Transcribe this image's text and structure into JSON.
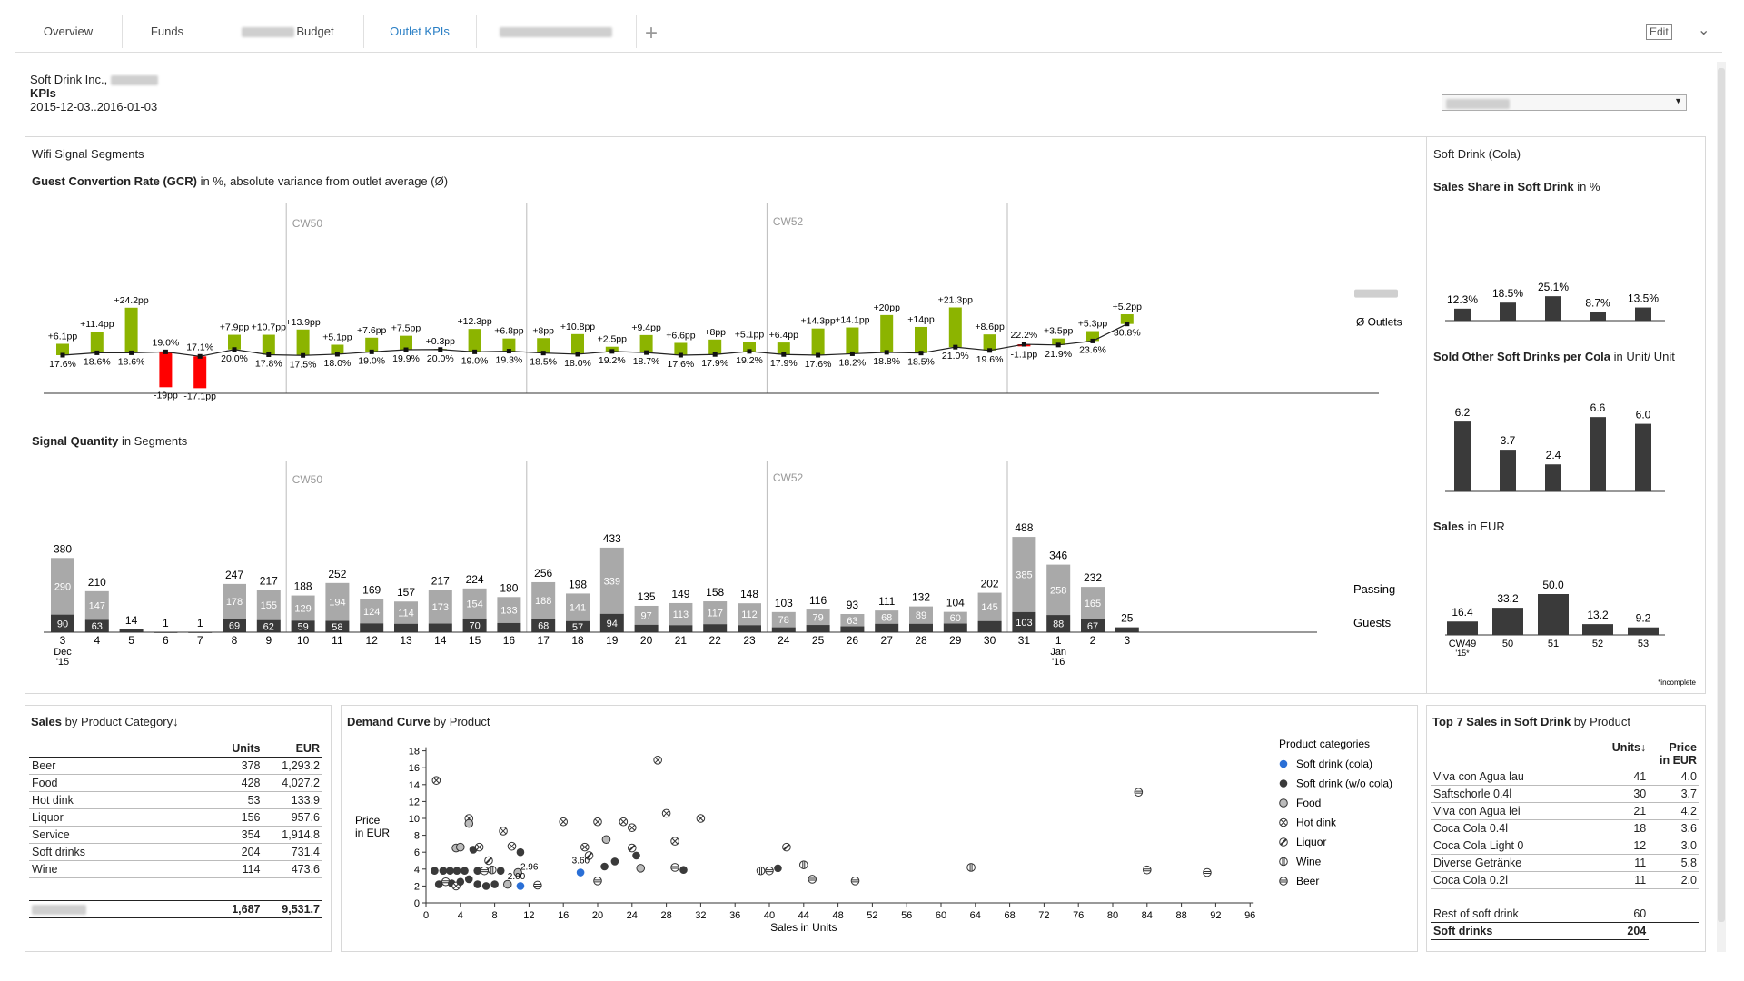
{
  "tabs": [
    {
      "label": "Overview",
      "active": false
    },
    {
      "label": "Funds",
      "active": false
    },
    {
      "label": "Budget",
      "active": false,
      "blurred_prefix": true
    },
    {
      "label": "Outlet KPIs",
      "active": true
    },
    {
      "label": "",
      "active": false,
      "blurred": true
    }
  ],
  "header": {
    "company": "Soft Drink Inc.,",
    "title": "KPIs",
    "date_range": "2015-12-03..2016-01-03",
    "edit_label": "Edit"
  },
  "wifi": {
    "section_title": "Wifi Signal Segments",
    "gcr_title_bold": "Guest Convertion Rate (GCR)",
    "gcr_title_rest": " in %, absolute variance from outlet average (Ø)",
    "week_labels": [
      "CW50",
      "CW52"
    ],
    "outlets_label": "Ø Outlets",
    "gcr": {
      "variance": [
        "+6.1pp",
        "+11.4pp",
        "+24.2pp",
        "-19pp",
        "-17.1pp",
        "+7.9pp",
        "+10.7pp",
        "+13.9pp",
        "+5.1pp",
        "+7.6pp",
        "+7.5pp",
        "+0.3pp",
        "+12.3pp",
        "+6.8pp",
        "+8pp",
        "+10.8pp",
        "+2.5pp",
        "+9.4pp",
        "+6.6pp",
        "+8pp",
        "+5.1pp",
        "+6.4pp",
        "+14.3pp",
        "+14.1pp",
        "+20pp",
        "+14pp",
        "+21.3pp",
        "+8.6pp",
        "-1.1pp",
        "+3.5pp",
        "+5.3pp",
        "+5.2pp"
      ],
      "variance_values": [
        6.1,
        11.4,
        24.2,
        -19,
        -17.1,
        7.9,
        10.7,
        13.9,
        5.1,
        7.6,
        7.5,
        0.3,
        12.3,
        6.8,
        8,
        10.8,
        2.5,
        9.4,
        6.6,
        8,
        5.1,
        6.4,
        14.3,
        14.1,
        20,
        14,
        21.3,
        8.6,
        -1.1,
        3.5,
        5.3,
        5.2
      ],
      "average": [
        "17.6%",
        "18.6%",
        "18.6%",
        "19.0%",
        "17.1%",
        "20.0%",
        "17.8%",
        "17.5%",
        "18.0%",
        "19.0%",
        "19.9%",
        "20.0%",
        "19.0%",
        "19.3%",
        "18.5%",
        "18.0%",
        "19.2%",
        "18.7%",
        "17.6%",
        "17.9%",
        "19.2%",
        "17.9%",
        "17.6%",
        "18.2%",
        "18.8%",
        "18.5%",
        "21.0%",
        "19.6%",
        "22.2%",
        "21.9%",
        "23.6%",
        "30.8%"
      ],
      "average_values": [
        17.6,
        18.6,
        18.6,
        19.0,
        17.1,
        20.0,
        17.8,
        17.5,
        18.0,
        19.0,
        19.9,
        20.0,
        19.0,
        19.3,
        18.5,
        18.0,
        19.2,
        18.7,
        17.6,
        17.9,
        19.2,
        17.9,
        17.6,
        18.2,
        18.8,
        18.5,
        21.0,
        19.6,
        22.2,
        21.9,
        23.6,
        30.8
      ]
    },
    "sq_title_bold": "Signal Quantity",
    "sq_title_rest": " in Segments",
    "sq": {
      "total": [
        "380",
        "210",
        "14",
        "1",
        "1",
        "247",
        "217",
        "188",
        "252",
        "169",
        "157",
        "217",
        "224",
        "180",
        "256",
        "198",
        "433",
        "135",
        "149",
        "158",
        "148",
        "103",
        "116",
        "93",
        "111",
        "132",
        "104",
        "202",
        "488",
        "346",
        "232",
        "25"
      ],
      "total_values": [
        380,
        210,
        14,
        1,
        1,
        247,
        217,
        188,
        252,
        169,
        157,
        217,
        224,
        180,
        256,
        198,
        433,
        135,
        149,
        158,
        148,
        103,
        116,
        93,
        111,
        132,
        104,
        202,
        488,
        346,
        232,
        25
      ],
      "passing": [
        "290",
        "147",
        "",
        "",
        "",
        "178",
        "155",
        "129",
        "194",
        "124",
        "114",
        "173",
        "154",
        "133",
        "188",
        "141",
        "339",
        "97",
        "113",
        "117",
        "112",
        "78",
        "79",
        "63",
        "68",
        "89",
        "60",
        "145",
        "385",
        "258",
        "165",
        ""
      ],
      "guests": [
        "90",
        "63",
        "",
        "",
        "",
        "69",
        "62",
        "59",
        "58",
        "",
        "",
        "",
        "70",
        "",
        "68",
        "57",
        "94",
        "",
        "",
        "",
        "",
        "",
        "",
        "",
        "",
        "",
        "",
        "",
        "103",
        "88",
        "67",
        ""
      ],
      "legend_passing": "Passing",
      "legend_guests": "Guests",
      "days": [
        "3",
        "4",
        "5",
        "6",
        "7",
        "8",
        "9",
        "10",
        "11",
        "12",
        "13",
        "14",
        "15",
        "16",
        "17",
        "18",
        "19",
        "20",
        "21",
        "22",
        "23",
        "24",
        "25",
        "26",
        "27",
        "28",
        "29",
        "30",
        "31",
        "1",
        "2",
        "3"
      ],
      "dec_label": "Dec",
      "dec_year": "'15",
      "jan_label": "Jan",
      "jan_year": "'16"
    }
  },
  "cola": {
    "section_title": "Soft Drink (Cola)",
    "share_title_bold": "Sales Share in Soft Drink",
    "share_title_rest": " in %",
    "share_labels": [
      "12.3%",
      "18.5%",
      "25.1%",
      "8.7%",
      "13.5%"
    ],
    "share_values": [
      12.3,
      18.5,
      25.1,
      8.7,
      13.5
    ],
    "other_title_bold": "Sold Other Soft Drinks per Cola",
    "other_title_rest": " in Unit/ Unit",
    "other_labels": [
      "6.2",
      "3.7",
      "2.4",
      "6.6",
      "6.0"
    ],
    "other_values": [
      6.2,
      3.7,
      2.4,
      6.6,
      6.0
    ],
    "sales_title_bold": "Sales",
    "sales_title_rest": " in EUR",
    "sales_labels": [
      "16.4",
      "33.2",
      "50.0",
      "13.2",
      "9.2"
    ],
    "sales_values": [
      16.4,
      33.2,
      50.0,
      13.2,
      9.2
    ],
    "weeks": [
      "CW49",
      "50",
      "51",
      "52",
      "53"
    ],
    "cw49_note": "'15*",
    "incomplete": "*incomplete"
  },
  "category": {
    "title_bold": "Sales",
    "title_rest": " by Product Category↓",
    "col_units": "Units",
    "col_eur": "EUR",
    "rows": [
      {
        "name": "Beer",
        "units": "378",
        "eur": "1,293.2"
      },
      {
        "name": "Food",
        "units": "428",
        "eur": "4,027.2"
      },
      {
        "name": "Hot dink",
        "units": "53",
        "eur": "133.9"
      },
      {
        "name": "Liquor",
        "units": "156",
        "eur": "957.6"
      },
      {
        "name": "Service",
        "units": "354",
        "eur": "1,914.8"
      },
      {
        "name": "Soft drinks",
        "units": "204",
        "eur": "731.4"
      },
      {
        "name": "Wine",
        "units": "114",
        "eur": "473.6"
      }
    ],
    "total_units": "1,687",
    "total_eur": "9,531.7"
  },
  "demand": {
    "title_bold": "Demand Curve",
    "title_rest": " by Product",
    "ylabel1": "Price",
    "ylabel2": "in EUR",
    "xlabel": "Sales in Units",
    "yticks": [
      "0",
      "2",
      "4",
      "6",
      "8",
      "10",
      "12",
      "14",
      "16",
      "18"
    ],
    "xticks": [
      "0",
      "4",
      "8",
      "12",
      "16",
      "20",
      "24",
      "28",
      "32",
      "36",
      "40",
      "44",
      "48",
      "52",
      "56",
      "60",
      "64",
      "68",
      "72",
      "76",
      "80",
      "84",
      "88",
      "92",
      "96"
    ],
    "legend_title": "Product categories",
    "legend": [
      "Soft drink (cola)",
      "Soft drink (w/o cola)",
      "Food",
      "Hot dink",
      "Liquor",
      "Wine",
      "Beer"
    ],
    "annotations": [
      "2.96",
      "3.60",
      "2.00"
    ],
    "colors": {
      "cola": "#2a6fd6",
      "dark": "#3a3a3a"
    }
  },
  "top7": {
    "title_bold": "Top 7 Sales in Soft Drink",
    "title_rest": " by Product",
    "col_units": "Units↓",
    "col_price1": "Price",
    "col_price2": "in EUR",
    "rows": [
      {
        "name": "Viva con Agua lau",
        "units": "41",
        "price": "4.0"
      },
      {
        "name": "Saftschorle 0.4l",
        "units": "30",
        "price": "3.7"
      },
      {
        "name": "Viva con Agua lei",
        "units": "21",
        "price": "4.2"
      },
      {
        "name": "Coca Cola 0.4l",
        "units": "18",
        "price": "3.6"
      },
      {
        "name": "Coca Cola Light 0",
        "units": "12",
        "price": "3.0"
      },
      {
        "name": "Diverse Getränke",
        "units": "11",
        "price": "5.8"
      },
      {
        "name": "Coca Cola 0.2l",
        "units": "11",
        "price": "2.0"
      }
    ],
    "rest_label": "Rest of soft drink",
    "rest_units": "60",
    "total_label": "Soft drinks",
    "total_units": "204"
  }
}
